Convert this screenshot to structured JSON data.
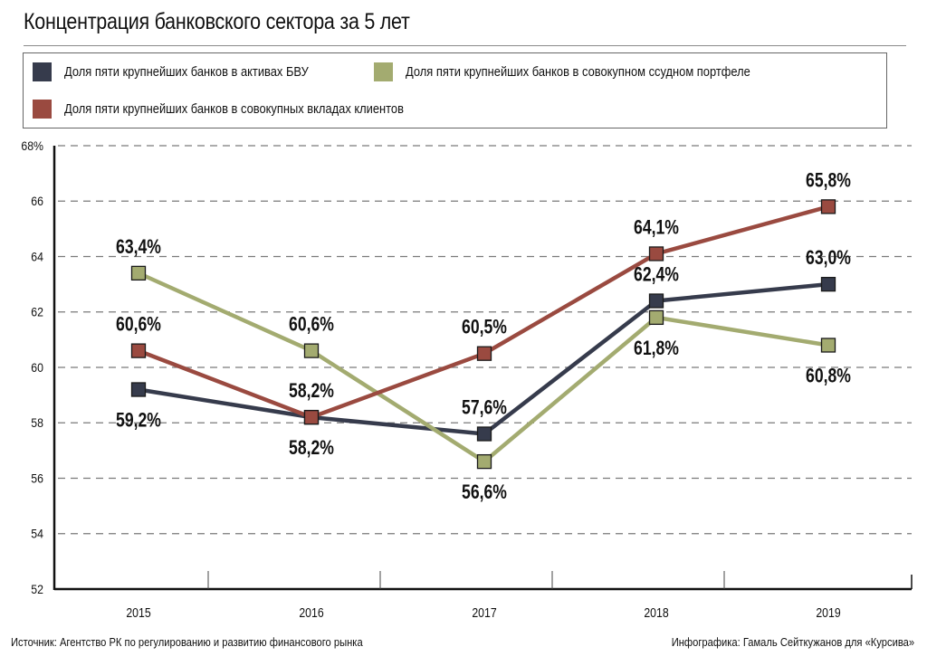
{
  "title": "Концентрация банковского сектора за 5 лет",
  "legend": [
    {
      "label": "Доля пяти крупнейших банков в активах БВУ",
      "color": "#363b4c"
    },
    {
      "label": "Доля пяти крупнейших банков в совокупном ссудном портфеле",
      "color": "#a3ab70"
    },
    {
      "label": "Доля пяти крупнейших банков в совокупных вкладах клиентов",
      "color": "#9a4a40"
    }
  ],
  "source": "Источник: Агентство РК по регулированию и развитию финансового рынка",
  "credit": "Инфографика: Гамаль Сейткужанов для «Курсива»",
  "chart_data": {
    "type": "line",
    "title": "Концентрация банковского сектора за 5 лет",
    "xlabel": "",
    "ylabel": "",
    "categories": [
      "2015",
      "2016",
      "2017",
      "2018",
      "2019"
    ],
    "ylim": [
      52,
      68
    ],
    "yticks": [
      52,
      54,
      56,
      58,
      60,
      62,
      64,
      66,
      68
    ],
    "ytick_labels": [
      "52",
      "54",
      "56",
      "58",
      "60",
      "62",
      "64",
      "66",
      "68%"
    ],
    "grid": "horizontal-dashed",
    "legend_position": "top",
    "series": [
      {
        "name": "Доля пяти крупнейших банков в активах БВУ",
        "color": "#363b4c",
        "values": [
          59.2,
          58.2,
          57.6,
          62.4,
          63.0
        ],
        "labels": [
          "59,2%",
          "58,2%",
          "57,6%",
          "62,4%",
          "63,0%"
        ],
        "label_pos": [
          "below",
          "below",
          "above",
          "above",
          "above"
        ]
      },
      {
        "name": "Доля пяти крупнейших банков в совокупном ссудном портфеле",
        "color": "#a3ab70",
        "values": [
          63.4,
          60.6,
          56.6,
          61.8,
          60.8
        ],
        "labels": [
          "63,4%",
          "60,6%",
          "56,6%",
          "61,8%",
          "60,8%"
        ],
        "label_pos": [
          "above",
          "above",
          "below",
          "below",
          "below"
        ]
      },
      {
        "name": "Доля пяти крупнейших банков в совокупных вкладах клиентов",
        "color": "#9a4a40",
        "values": [
          60.6,
          58.2,
          60.5,
          64.1,
          65.8
        ],
        "labels": [
          "60,6%",
          "58,2%",
          "60,5%",
          "64,1%",
          "65,8%"
        ],
        "label_pos": [
          "above",
          "above",
          "above",
          "above",
          "above"
        ]
      }
    ]
  }
}
